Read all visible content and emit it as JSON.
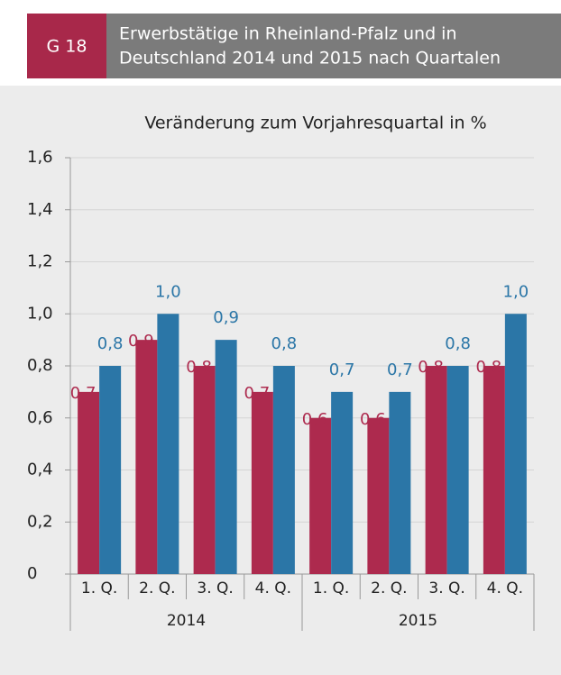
{
  "chart_data": {
    "type": "bar",
    "badge": "G 18",
    "title": [
      "Erwerbstätige in Rheinland-Pfalz und in",
      "Deutschland 2014 und 2015 nach Quartalen"
    ],
    "subtitle": "Veränderung zum Vorjahresquartal in %",
    "categories": [
      "1. Q.",
      "2. Q.",
      "3. Q.",
      "4. Q.",
      "1. Q.",
      "2. Q.",
      "3. Q.",
      "4. Q."
    ],
    "x_groups": [
      "2014",
      "2015"
    ],
    "series": [
      {
        "color": "#ad2a4e",
        "values": [
          0.7,
          0.9,
          0.8,
          0.7,
          0.6,
          0.6,
          0.8,
          0.8
        ],
        "value_labels": [
          "0,7",
          "0,9",
          "0,8",
          "0,7",
          "0,6",
          "0,6",
          "0,8",
          "0,8"
        ]
      },
      {
        "color": "#2b76a7",
        "values": [
          0.8,
          1.0,
          0.9,
          0.8,
          0.7,
          0.7,
          0.8,
          1.0
        ],
        "value_labels": [
          "0,8",
          "1,0",
          "0,9",
          "0,8",
          "0,7",
          "0,7",
          "0,8",
          "1,0"
        ]
      }
    ],
    "ylim": [
      0,
      1.6
    ],
    "yticks": [
      0,
      {
        "value": 0.2,
        "label": "0,2"
      },
      {
        "value": 0.4,
        "label": "0,4"
      },
      {
        "value": 0.6,
        "label": "0,6"
      },
      {
        "value": 0.8,
        "label": "0,8"
      },
      {
        "value": 1.0,
        "label": "1,0"
      },
      {
        "value": 1.2,
        "label": "1,2"
      },
      {
        "value": 1.4,
        "label": "1,4"
      },
      {
        "value": 1.6,
        "label": "1,6"
      }
    ],
    "grid": true
  }
}
